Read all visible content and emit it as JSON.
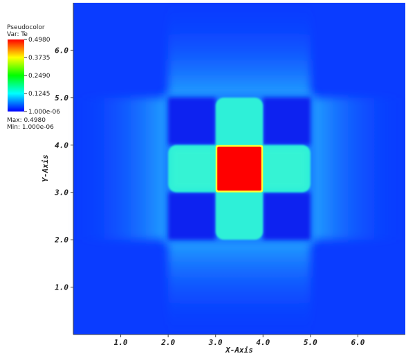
{
  "legend": {
    "plot_type": "Pseudocolor",
    "var_label": "Var: Te",
    "ticks": [
      "0.4980",
      "0.3735",
      "0.2490",
      "0.1245",
      "1.000e-06"
    ],
    "max_label": "Max:  0.4980",
    "min_label": "Min:  1.000e-06",
    "colormap": [
      "#ff0000",
      "#ffff00",
      "#00ff00",
      "#00ffff",
      "#0000ff"
    ]
  },
  "chart_data": {
    "type": "heatmap",
    "variable": "Te",
    "xlabel": "X-Axis",
    "ylabel": "Y-Axis",
    "xlim": [
      0.0,
      7.0
    ],
    "ylim": [
      0.0,
      7.0
    ],
    "x_ticks": [
      "1.0",
      "2.0",
      "3.0",
      "4.0",
      "5.0",
      "6.0"
    ],
    "y_ticks": [
      "1.0",
      "2.0",
      "3.0",
      "4.0",
      "5.0",
      "6.0"
    ],
    "value_range": [
      1e-06,
      0.498
    ],
    "regions": [
      {
        "shape": "hot-square",
        "x": [
          3.0,
          4.0
        ],
        "y": [
          3.0,
          4.0
        ],
        "value": 0.498
      },
      {
        "shape": "cross-plateau",
        "x": [
          3.0,
          4.0
        ],
        "y": [
          2.0,
          5.0
        ],
        "value": 0.14
      },
      {
        "shape": "cross-plateau",
        "x": [
          2.0,
          5.0
        ],
        "y": [
          3.0,
          4.0
        ],
        "value": 0.14
      },
      {
        "shape": "dark-pocket",
        "x": [
          2.0,
          3.0
        ],
        "y": [
          4.0,
          5.0
        ],
        "value": 0.02
      },
      {
        "shape": "dark-pocket",
        "x": [
          4.0,
          5.0
        ],
        "y": [
          4.0,
          5.0
        ],
        "value": 0.02
      },
      {
        "shape": "dark-pocket",
        "x": [
          2.0,
          3.0
        ],
        "y": [
          2.0,
          3.0
        ],
        "value": 0.02
      },
      {
        "shape": "dark-pocket",
        "x": [
          4.0,
          5.0
        ],
        "y": [
          2.0,
          3.0
        ],
        "value": 0.02
      }
    ]
  }
}
